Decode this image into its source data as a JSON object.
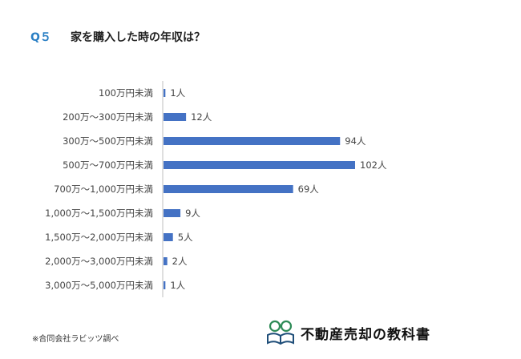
{
  "question": {
    "number": "Q５",
    "title": "家を購入した時の年収は？"
  },
  "footnote": "※合同会社ラビッツ調べ",
  "logo": {
    "text": "不動産売却の教科書",
    "icon": "glasses-book-icon"
  },
  "colors": {
    "bar": "#4472c4",
    "accent": "#2a7fc4"
  },
  "chart_data": {
    "type": "bar",
    "orientation": "horizontal",
    "title": "",
    "xlabel": "",
    "ylabel": "",
    "categories": [
      "100万円未満",
      "200万～300万円未満",
      "300万～500万円未満",
      "500万～700万円未満",
      "700万～1,000万円未満",
      "1,000万～1,500万円未満",
      "1,500万～2,000万円未満",
      "2,000万～3,000万円未満",
      "3,000万～5,000万円未満"
    ],
    "values": [
      1,
      12,
      94,
      102,
      69,
      9,
      5,
      2,
      1
    ],
    "value_labels": [
      "1人",
      "12人",
      "94人",
      "102人",
      "69人",
      "9人",
      "5人",
      "2人",
      "1人"
    ],
    "xlim": [
      0,
      102
    ],
    "grid": false,
    "legend": "none"
  }
}
